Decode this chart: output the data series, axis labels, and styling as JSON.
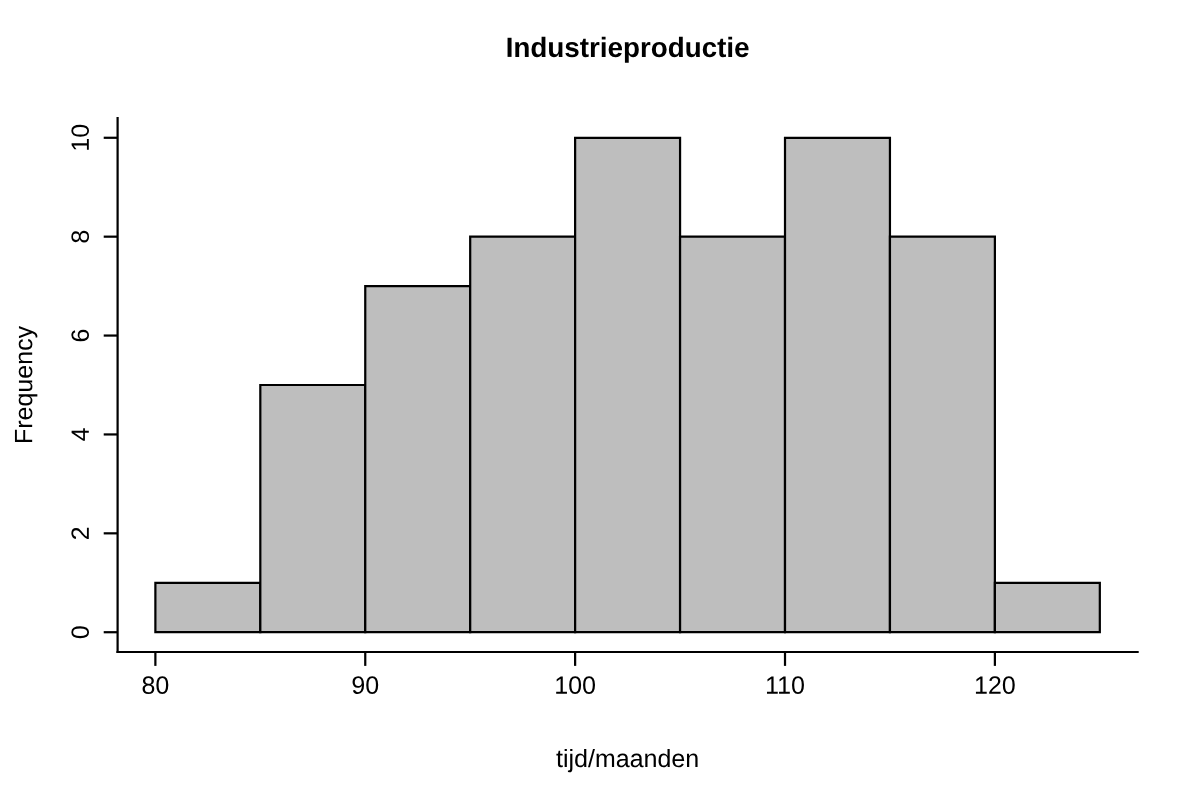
{
  "chart_data": {
    "type": "histogram",
    "title": "Industrieproductie",
    "xlabel": "tijd/maanden",
    "ylabel": "Frequency",
    "bins": [
      80,
      85,
      90,
      95,
      100,
      105,
      110,
      115,
      120,
      125
    ],
    "values": [
      1,
      5,
      7,
      8,
      10,
      8,
      10,
      8,
      1
    ],
    "color": "#bebebe",
    "xlim": [
      78.2,
      126.8
    ],
    "ylim": [
      -0.4,
      10.4
    ],
    "xticks": [
      80,
      90,
      100,
      110,
      120
    ],
    "yticks": [
      0,
      2,
      4,
      6,
      8,
      10
    ],
    "grid": false,
    "legend": false
  }
}
